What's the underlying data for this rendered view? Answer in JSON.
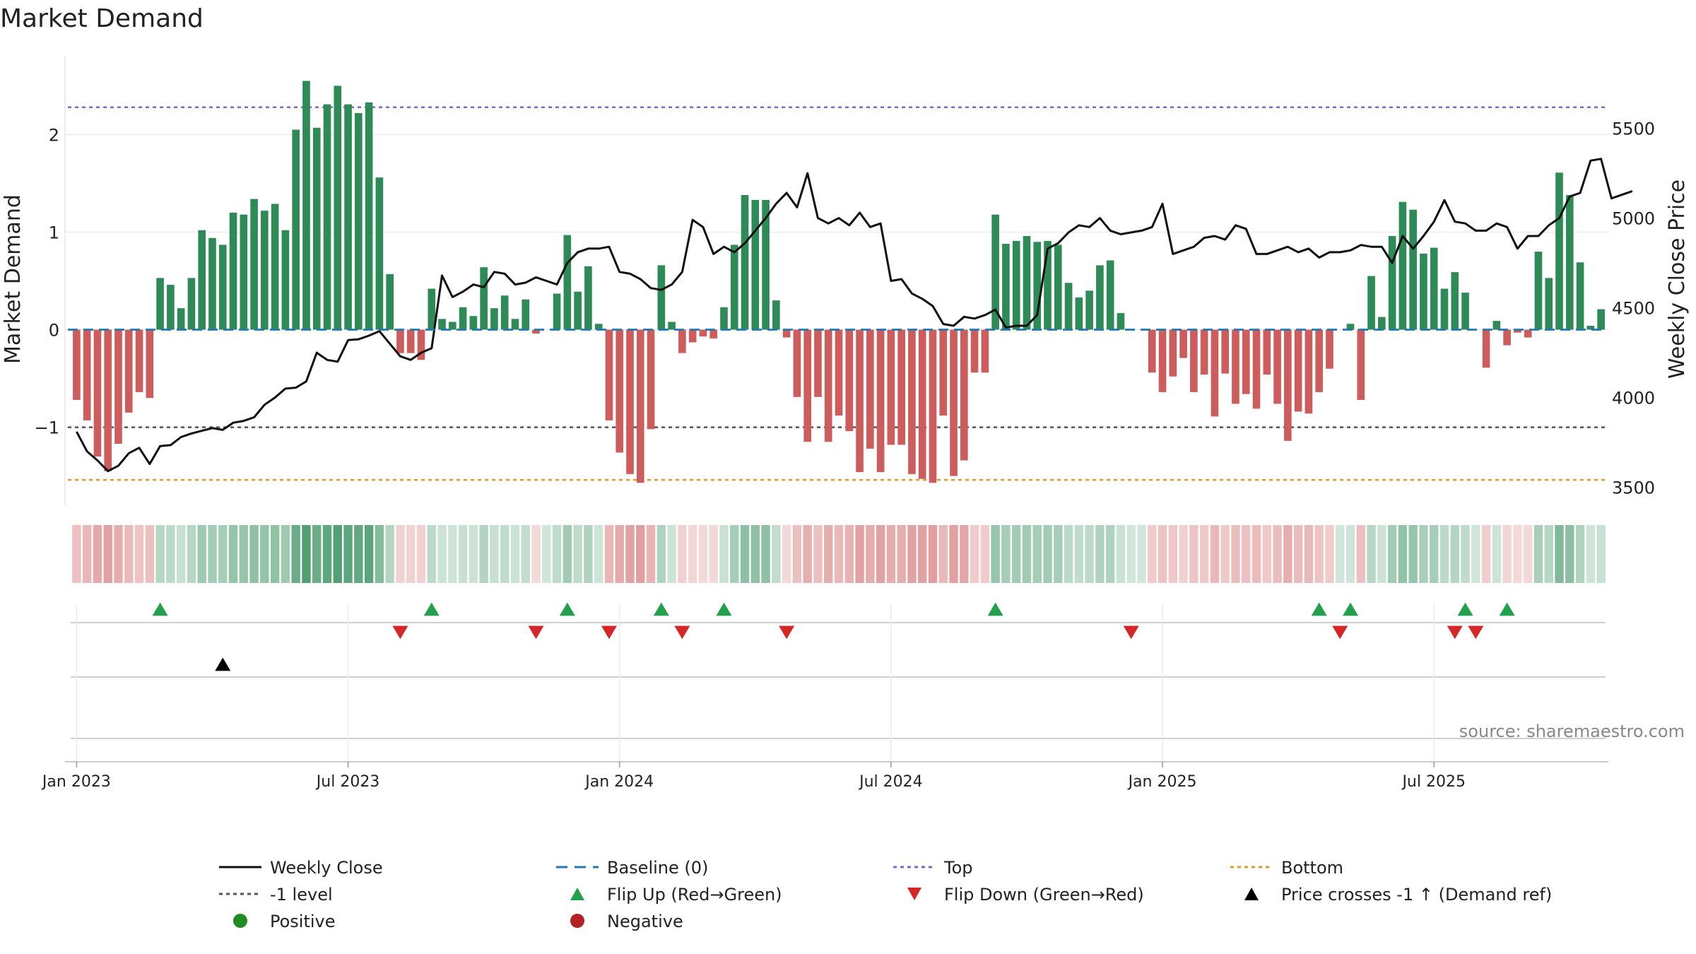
{
  "chart_data": {
    "type": "bar",
    "title": "Market Demand",
    "ylabel": "Market Demand",
    "y2label": "Weekly Close Price",
    "source": "source: sharemaestro.com",
    "ylim": [
      -1.8,
      2.8
    ],
    "y2lim": [
      3400,
      5900
    ],
    "yticks": [
      {
        "v": 2,
        "label": "2"
      },
      {
        "v": 1,
        "label": "1"
      },
      {
        "v": 0,
        "label": "0"
      },
      {
        "v": -1,
        "label": "−1"
      }
    ],
    "y2ticks": [
      {
        "v": 5500,
        "label": "5500"
      },
      {
        "v": 5000,
        "label": "5000"
      },
      {
        "v": 4500,
        "label": "4500"
      },
      {
        "v": 4000,
        "label": "4000"
      },
      {
        "v": 3500,
        "label": "3500"
      }
    ],
    "xticks": [
      {
        "week": 1,
        "label": "Jan 2023"
      },
      {
        "week": 27,
        "label": "Jul 2023"
      },
      {
        "week": 53,
        "label": "Jan 2024"
      },
      {
        "week": 79,
        "label": "Jul 2024"
      },
      {
        "week": 105,
        "label": "Jan 2025"
      },
      {
        "week": 131,
        "label": "Jul 2025"
      }
    ],
    "reference_lines": {
      "top": 2.28,
      "bottom": -1.54,
      "minus_one": -1,
      "baseline": 0
    },
    "demand": [
      -0.72,
      -0.93,
      -1.3,
      -1.45,
      -1.17,
      -0.85,
      -0.64,
      -0.7,
      0.53,
      0.46,
      0.22,
      0.53,
      1.02,
      0.94,
      0.87,
      1.2,
      1.18,
      1.34,
      1.22,
      1.29,
      1.02,
      2.05,
      2.55,
      2.07,
      2.31,
      2.5,
      2.31,
      2.22,
      2.33,
      1.56,
      0.57,
      -0.24,
      -0.24,
      -0.31,
      0.42,
      0.11,
      0.08,
      0.23,
      0.14,
      0.64,
      0.22,
      0.35,
      0.11,
      0.31,
      -0.04,
      0.0,
      0.37,
      0.97,
      0.39,
      0.65,
      0.06,
      -0.93,
      -1.26,
      -1.48,
      -1.57,
      -1.02,
      0.66,
      0.08,
      -0.24,
      -0.13,
      -0.07,
      -0.09,
      0.23,
      0.87,
      1.38,
      1.33,
      1.33,
      0.3,
      -0.08,
      -0.69,
      -1.15,
      -0.69,
      -1.15,
      -0.88,
      -1.04,
      -1.46,
      -1.22,
      -1.46,
      -1.18,
      -1.18,
      -1.48,
      -1.53,
      -1.57,
      -0.88,
      -1.5,
      -1.34,
      -0.44,
      -0.44,
      1.18,
      0.88,
      0.91,
      0.96,
      0.9,
      0.91,
      0.87,
      0.48,
      0.33,
      0.4,
      0.66,
      0.71,
      0.17,
      0.0,
      0.0,
      -0.44,
      -0.64,
      -0.48,
      -0.29,
      -0.64,
      -0.46,
      -0.89,
      -0.45,
      -0.76,
      -0.66,
      -0.81,
      -0.46,
      -0.76,
      -1.14,
      -0.84,
      -0.86,
      -0.64,
      -0.4,
      0.0,
      0.06,
      -0.72,
      0.55,
      0.13,
      0.96,
      1.31,
      1.23,
      0.78,
      0.84,
      0.42,
      0.59,
      0.38,
      0.0,
      -0.39,
      0.09,
      -0.16,
      -0.03,
      -0.08,
      0.8,
      0.53,
      1.61,
      1.38,
      0.69,
      0.04,
      0.21
    ],
    "close": [
      3810,
      3700,
      3650,
      3590,
      3620,
      3690,
      3720,
      3630,
      3730,
      3735,
      3780,
      3800,
      3815,
      3830,
      3820,
      3860,
      3870,
      3890,
      3960,
      4000,
      4050,
      4055,
      4090,
      4250,
      4210,
      4200,
      4320,
      4325,
      4345,
      4370,
      4300,
      4230,
      4210,
      4250,
      4275,
      4680,
      4560,
      4590,
      4630,
      4615,
      4700,
      4690,
      4630,
      4640,
      4670,
      4650,
      4630,
      4750,
      4810,
      4830,
      4830,
      4840,
      4700,
      4690,
      4660,
      4610,
      4600,
      4630,
      4700,
      4990,
      4950,
      4800,
      4840,
      4810,
      4860,
      4930,
      5000,
      5080,
      5140,
      5060,
      5250,
      5000,
      4970,
      5000,
      4960,
      5030,
      4950,
      4970,
      4650,
      4660,
      4580,
      4550,
      4510,
      4410,
      4400,
      4450,
      4440,
      4460,
      4490,
      4390,
      4400,
      4400,
      4460,
      4830,
      4860,
      4920,
      4960,
      4950,
      5000,
      4930,
      4910,
      4920,
      4930,
      4950,
      5080,
      4800,
      4820,
      4840,
      4890,
      4900,
      4880,
      4960,
      4940,
      4800,
      4800,
      4820,
      4840,
      4810,
      4830,
      4780,
      4810,
      4810,
      4820,
      4850,
      4840,
      4840,
      4750,
      4900,
      4830,
      4900,
      4980,
      5100,
      4980,
      4970,
      4930,
      4930,
      4970,
      4950,
      4830,
      4900,
      4900,
      4960,
      5000,
      5120,
      5140,
      5320,
      5330,
      5110,
      5130,
      5150
    ]
  },
  "flip_up_weeks": [
    9,
    35,
    48,
    57,
    63,
    89,
    120,
    123,
    134,
    138
  ],
  "flip_down_weeks": [
    32,
    45,
    52,
    59,
    69,
    102,
    122,
    133,
    135
  ],
  "price_cross_weeks": [
    15
  ],
  "legend": [
    {
      "key": "weekly_close",
      "label": "Weekly Close"
    },
    {
      "key": "baseline",
      "label": "Baseline (0)"
    },
    {
      "key": "top",
      "label": "Top"
    },
    {
      "key": "bottom",
      "label": "Bottom"
    },
    {
      "key": "minus_one",
      "label": "-1 level"
    },
    {
      "key": "flip_up",
      "label": "Flip Up (Red→Green)"
    },
    {
      "key": "flip_down",
      "label": "Flip Down (Green→Red)"
    },
    {
      "key": "price_cross",
      "label": "Price crosses -1 ↑ (Demand ref)"
    },
    {
      "key": "positive",
      "label": "Positive"
    },
    {
      "key": "negative",
      "label": "Negative"
    }
  ],
  "colors": {
    "positive_bar": "#2e8b57",
    "negative_bar": "#cd5c5c",
    "close_line": "#111111",
    "baseline": "#1f77b4",
    "top": "#7b68c8",
    "bottom": "#e09a2a",
    "minus_one": "#555555",
    "flip_up": "#22a04b",
    "flip_down": "#d62728",
    "price_cross": "#000000",
    "positive_dot": "#228b22",
    "negative_dot": "#b22222"
  }
}
